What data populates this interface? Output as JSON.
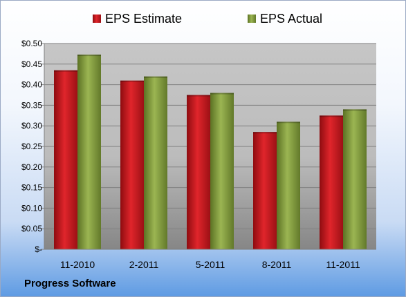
{
  "company": "Progress Software",
  "colors": {
    "estimate": "#c0161c",
    "actual": "#7f9a3a"
  },
  "chart_data": {
    "type": "bar",
    "title": "",
    "xlabel": "",
    "ylabel": "",
    "categories": [
      "11-2010",
      "2-2011",
      "5-2011",
      "8-2011",
      "11-2011"
    ],
    "series": [
      {
        "name": "EPS Estimate",
        "values": [
          0.435,
          0.41,
          0.375,
          0.285,
          0.325
        ]
      },
      {
        "name": "EPS Actual",
        "values": [
          0.473,
          0.42,
          0.38,
          0.31,
          0.34
        ]
      }
    ],
    "ylim": [
      0,
      0.5
    ],
    "yticks": [
      0,
      0.05,
      0.1,
      0.15,
      0.2,
      0.25,
      0.3,
      0.35,
      0.4,
      0.45,
      0.5
    ],
    "ytick_labels": [
      "$-",
      "$0.05",
      "$0.10",
      "$0.15",
      "$0.20",
      "$0.25",
      "$0.30",
      "$0.35",
      "$0.40",
      "$0.45",
      "$0.50"
    ],
    "grid": true,
    "legend": "top"
  }
}
